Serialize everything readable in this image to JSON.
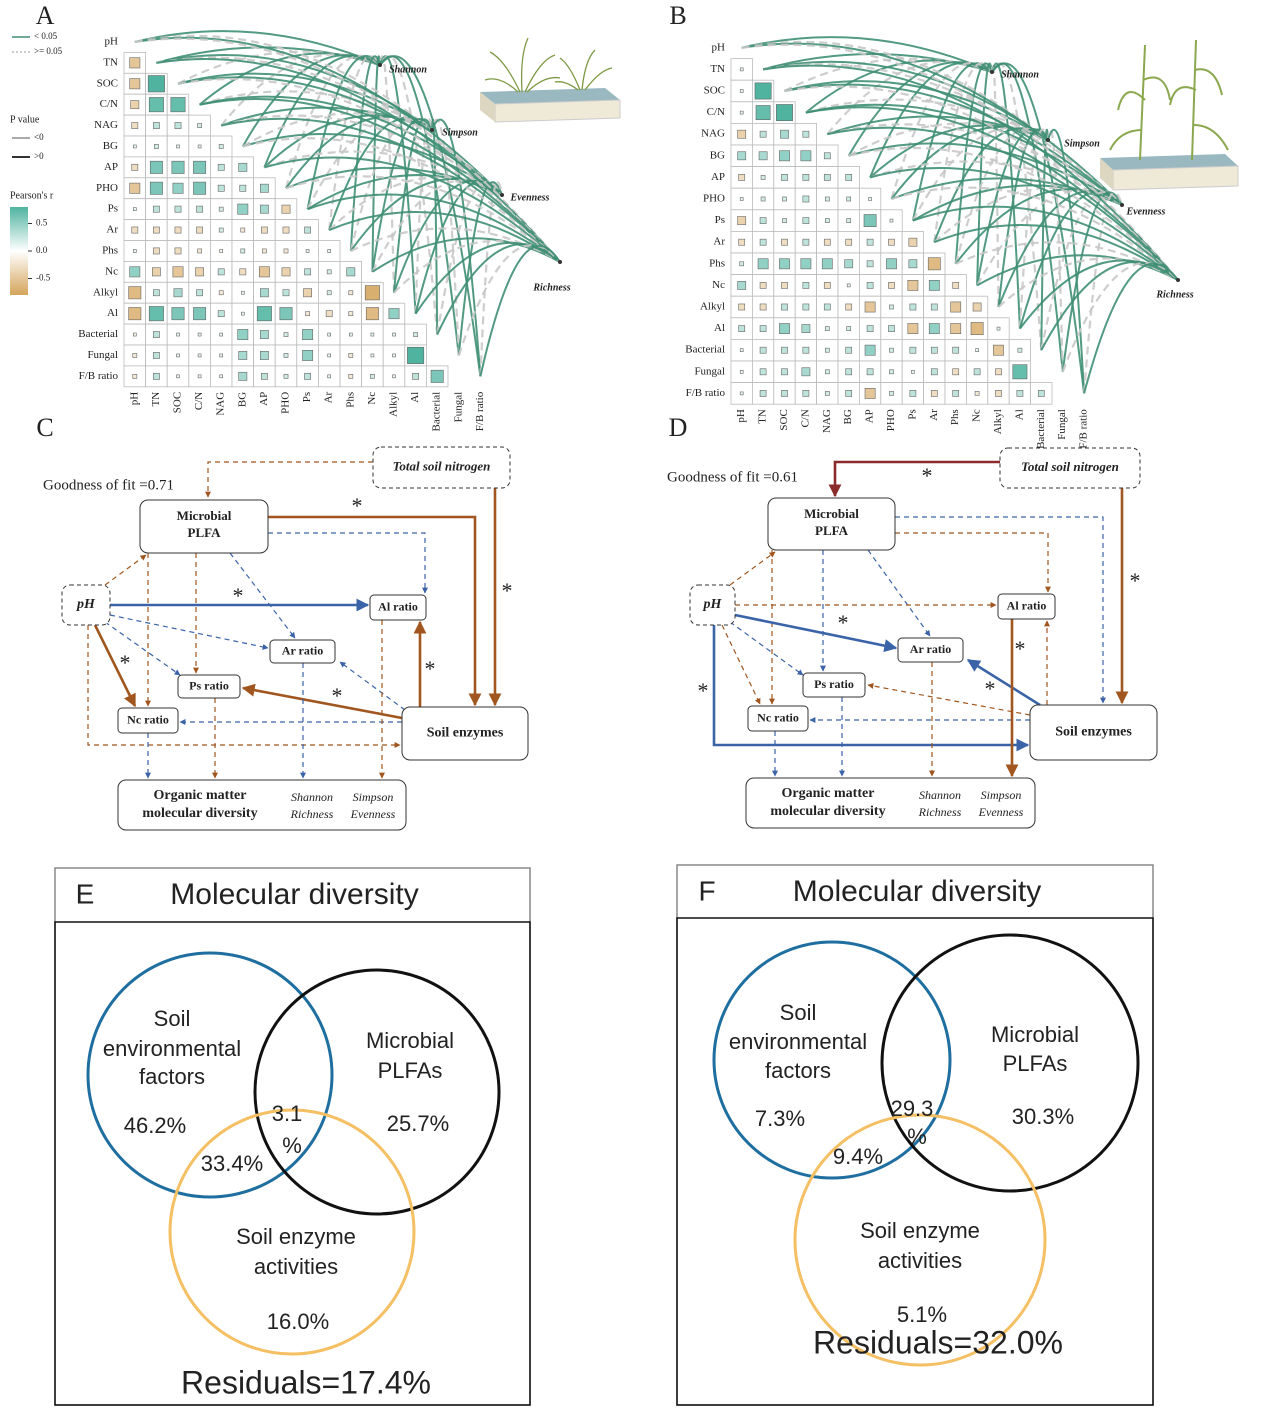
{
  "panel_a": {
    "label": "A",
    "variables": [
      "pH",
      "TN",
      "SOC",
      "C/N",
      "NAG",
      "BG",
      "AP",
      "PHO",
      "Ps",
      "Ar",
      "Phs",
      "Nc",
      "Alkyl",
      "Al",
      "Bacterial",
      "Fungal",
      "F/B ratio"
    ],
    "matrix": [
      [
        -0.5
      ],
      [
        -0.5,
        0.8
      ],
      [
        -0.4,
        0.7,
        0.7
      ],
      [
        -0.3,
        0.3,
        0.3,
        0.2
      ],
      [
        0.1,
        0.2,
        0.1,
        0.1,
        0.2
      ],
      [
        -0.3,
        0.6,
        0.6,
        0.6,
        0.3,
        0.4
      ],
      [
        -0.5,
        0.6,
        0.5,
        0.6,
        0.3,
        0.3,
        0.4
      ],
      [
        0.1,
        0.3,
        0.3,
        0.3,
        0.2,
        0.5,
        0.4,
        -0.4
      ],
      [
        -0.3,
        -0.3,
        -0.3,
        -0.3,
        0.2,
        -0.2,
        -0.3,
        -0.3,
        0.3
      ],
      [
        0.1,
        -0.3,
        -0.3,
        -0.2,
        -0.1,
        0.2,
        -0.2,
        -0.2,
        0.1,
        0.1
      ],
      [
        0.5,
        -0.4,
        -0.5,
        -0.4,
        0.3,
        -0.3,
        -0.5,
        -0.4,
        0.3,
        0.2,
        0.4
      ],
      [
        -0.6,
        0.3,
        0.4,
        0.3,
        -0.2,
        0.1,
        0.4,
        0.3,
        -0.4,
        0.2,
        -0.2,
        -0.7
      ],
      [
        -0.6,
        0.7,
        0.6,
        0.6,
        0.3,
        0.1,
        0.7,
        0.6,
        -0.2,
        -0.3,
        -0.2,
        -0.6,
        0.5
      ],
      [
        -0.1,
        0.3,
        0.1,
        0.1,
        0.1,
        0.5,
        0.4,
        0.2,
        0.5,
        0.1,
        0.1,
        0.1,
        0.1,
        0.2
      ],
      [
        -0.2,
        0.3,
        0.1,
        0.1,
        0.1,
        0.4,
        0.4,
        0.2,
        0.5,
        0.1,
        -0.2,
        0.1,
        0.1,
        0.8
      ],
      [
        -0.2,
        0.3,
        0.1,
        0.1,
        0.1,
        0.4,
        0.3,
        0.2,
        0.3,
        0.1,
        -0.2,
        0.2,
        0.1,
        0.3,
        0.6
      ]
    ],
    "targets": [
      "Shannon",
      "Simpson",
      "Evenness",
      "Richness"
    ]
  },
  "legend": {
    "lines": [
      "< 0.05",
      ">= 0.05"
    ],
    "p_title": "P value",
    "signs": [
      "<0",
      ">0"
    ],
    "r_title": "Pearson's r",
    "r_ticks": [
      0.5,
      {
        "value": 0,
        "label": "0.0"
      },
      -0.5
    ],
    "r_range": [
      -0.8,
      0.8
    ]
  },
  "panel_b": {
    "label": "B",
    "variables": [
      "pH",
      "TN",
      "SOC",
      "C/N",
      "NAG",
      "BG",
      "AP",
      "PHO",
      "Ps",
      "Ar",
      "Phs",
      "Nc",
      "Alkyl",
      "Al",
      "Bacterial",
      "Fungal",
      "F/B ratio"
    ],
    "matrix": [
      [
        0.1
      ],
      [
        0.1,
        0.8
      ],
      [
        0.1,
        0.7,
        0.8
      ],
      [
        -0.4,
        0.3,
        0.4,
        0.3
      ],
      [
        0.4,
        0.4,
        0.5,
        0.5,
        0.3
      ],
      [
        -0.3,
        0.2,
        0.3,
        0.3,
        0.3,
        0.3
      ],
      [
        0.1,
        0.2,
        0.2,
        0.3,
        0.2,
        0.2,
        0.1
      ],
      [
        -0.4,
        0.3,
        0.2,
        0.3,
        0.2,
        0.2,
        0.6,
        0.1
      ],
      [
        -0.3,
        0.3,
        -0.3,
        0.3,
        -0.3,
        -0.3,
        0.3,
        -0.3,
        -0.4
      ],
      [
        0.2,
        0.5,
        0.5,
        0.5,
        0.5,
        0.4,
        0.3,
        0.5,
        0.4,
        -0.6
      ],
      [
        0.4,
        -0.3,
        -0.3,
        0.3,
        -0.3,
        0.1,
        0.3,
        -0.3,
        -0.5,
        0.5,
        -0.3
      ],
      [
        -0.3,
        -0.3,
        0.3,
        0.3,
        0.3,
        -0.3,
        -0.5,
        0.2,
        0.3,
        0.3,
        -0.5,
        -0.4
      ],
      [
        0.3,
        0.3,
        0.5,
        0.4,
        0.2,
        0.2,
        0.3,
        0.3,
        -0.5,
        0.5,
        -0.5,
        -0.6,
        0.1
      ],
      [
        0.1,
        0.3,
        0.3,
        0.3,
        0.2,
        0.3,
        0.5,
        0.2,
        0.3,
        0.3,
        0.3,
        0.1,
        -0.5,
        0.2
      ],
      [
        0.1,
        0.3,
        0.3,
        0.4,
        0.2,
        0.3,
        0.3,
        0.2,
        0.1,
        0.3,
        -0.3,
        0.3,
        -0.3,
        0.7
      ],
      [
        0.1,
        0.3,
        0.3,
        0.3,
        0.2,
        0.3,
        -0.5,
        0.2,
        0.3,
        -0.3,
        0.3,
        -0.2,
        -0.3,
        0.3,
        0.3
      ]
    ],
    "targets": [
      "Shannon",
      "Simpson",
      "Evenness",
      "Richness"
    ]
  },
  "panel_c": {
    "label": "C",
    "fit": "Goodness of fit =0.71",
    "nodes": {
      "tsn": "Total soil nitrogen",
      "plfa": [
        "Microbial",
        "PLFA"
      ],
      "ph": "pH",
      "al": "Al ratio",
      "ar": "Ar ratio",
      "ps": "Ps ratio",
      "nc": "Nc ratio",
      "se": "Soil enzymes",
      "om": [
        "Organic matter",
        "molecular diversity"
      ],
      "div": [
        "Shannon",
        "Richness",
        "Simpson",
        "Evenness"
      ]
    },
    "stars": [
      "*",
      "*",
      "*",
      "*",
      "*",
      "*"
    ]
  },
  "panel_d": {
    "label": "D",
    "fit": "Goodness of fit =0.61",
    "nodes": {
      "tsn": "Total soil nitrogen",
      "plfa": [
        "Microbial",
        "PLFA"
      ],
      "ph": "pH",
      "al": "Al ratio",
      "ar": "Ar ratio",
      "ps": "Ps ratio",
      "nc": "Nc ratio",
      "se": "Soil enzymes",
      "om": [
        "Organic matter",
        "molecular diversity"
      ],
      "div": [
        "Shannon",
        "Richness",
        "Simpson",
        "Evenness"
      ]
    },
    "stars": [
      "*",
      "*",
      "*",
      "*",
      "*",
      "*"
    ]
  },
  "panel_e": {
    "label": "E",
    "title": "Molecular diversity",
    "env": [
      "Soil",
      "environmental",
      "factors"
    ],
    "env_pct": "46.2%",
    "plfa": [
      "Microbial",
      "PLFAs"
    ],
    "plfa_pct": "25.7%",
    "center": [
      "3.1",
      "%"
    ],
    "env_enz_pct": "33.4%",
    "enz": [
      "Soil enzyme",
      "activities"
    ],
    "enz_pct": "16.0%",
    "residuals": "Residuals=17.4%"
  },
  "panel_f": {
    "label": "F",
    "title": "Molecular diversity",
    "env": [
      "Soil",
      "environmental",
      "factors"
    ],
    "env_pct": "7.3%",
    "plfa": [
      "Microbial",
      "PLFAs"
    ],
    "plfa_pct": "30.3%",
    "center": [
      "29.3",
      "%"
    ],
    "env_enz_pct": "9.4%",
    "enz": [
      "Soil enzyme",
      "activities"
    ],
    "enz_pct": "5.1%",
    "residuals": "Residuals=32.0%"
  }
}
